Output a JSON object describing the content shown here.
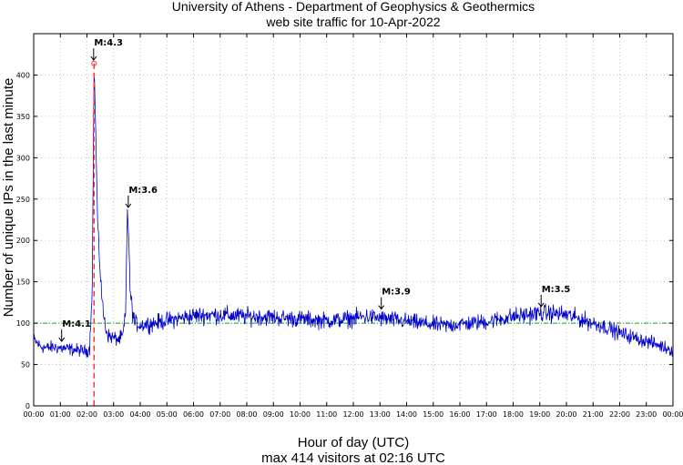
{
  "chart_data": {
    "type": "line",
    "title": "University of Athens - Department of Geophysics & Geothermics",
    "subtitle": "web site traffic for 10-Apr-2022",
    "xlabel": "Hour of day (UTC)",
    "ylabel": "Number of unique IPs in the last minute",
    "footer": "max 414 visitors at 02:16 UTC",
    "xlim": [
      0,
      24
    ],
    "ylim": [
      0,
      450
    ],
    "x_ticks": [
      "00:00",
      "01:00",
      "02:00",
      "03:00",
      "04:00",
      "05:00",
      "06:00",
      "07:00",
      "08:00",
      "09:00",
      "10:00",
      "11:00",
      "12:00",
      "13:00",
      "14:00",
      "15:00",
      "16:00",
      "17:00",
      "18:00",
      "19:00",
      "20:00",
      "21:00",
      "22:00",
      "23:00",
      "00:00"
    ],
    "y_ticks": [
      0,
      50,
      100,
      150,
      200,
      250,
      300,
      350,
      400
    ],
    "grid": true,
    "reference_line": {
      "y": 100,
      "color": "#00aa00"
    },
    "max_marker": {
      "hour": 2.267,
      "value": 414,
      "color": "#ff3333"
    },
    "series": [
      {
        "name": "unique IPs per minute",
        "color": "#0000cc",
        "x": [
          0,
          0.25,
          0.5,
          0.75,
          1,
          1.25,
          1.5,
          1.75,
          2,
          2.1,
          2.2,
          2.267,
          2.3,
          2.35,
          2.4,
          2.5,
          2.6,
          2.7,
          2.8,
          3,
          3.2,
          3.35,
          3.45,
          3.52,
          3.57,
          3.62,
          3.7,
          3.8,
          4,
          4.5,
          5,
          5.5,
          6,
          6.5,
          7,
          7.5,
          8,
          8.5,
          9,
          9.5,
          10,
          10.5,
          11,
          11.5,
          12,
          12.5,
          13,
          13.5,
          14,
          14.5,
          15,
          15.5,
          16,
          16.5,
          17,
          17.5,
          18,
          18.5,
          19,
          19.5,
          20,
          20.5,
          21,
          21.5,
          22,
          22.5,
          23,
          23.5,
          24
        ],
        "values": [
          80,
          72,
          70,
          71,
          70,
          69,
          68,
          67,
          66,
          70,
          150,
          414,
          370,
          300,
          220,
          160,
          115,
          95,
          85,
          82,
          80,
          85,
          110,
          243,
          200,
          140,
          115,
          100,
          98,
          100,
          103,
          106,
          109,
          110,
          110,
          109,
          108,
          108,
          107,
          106,
          105,
          104,
          103,
          104,
          106,
          108,
          106,
          104,
          102,
          100,
          98,
          97,
          99,
          100,
          102,
          105,
          108,
          110,
          112,
          112,
          110,
          105,
          100,
          95,
          88,
          83,
          78,
          73,
          67
        ]
      }
    ],
    "annotations": [
      {
        "label": "M:4.1",
        "hour": 1.05,
        "value": 78
      },
      {
        "label": "M:4.3",
        "hour": 2.25,
        "value": 418
      },
      {
        "label": "M:3.6",
        "hour": 3.55,
        "value": 240
      },
      {
        "label": "M:3.9",
        "hour": 13.05,
        "value": 117
      },
      {
        "label": "M:3.5",
        "hour": 19.05,
        "value": 120
      }
    ]
  }
}
